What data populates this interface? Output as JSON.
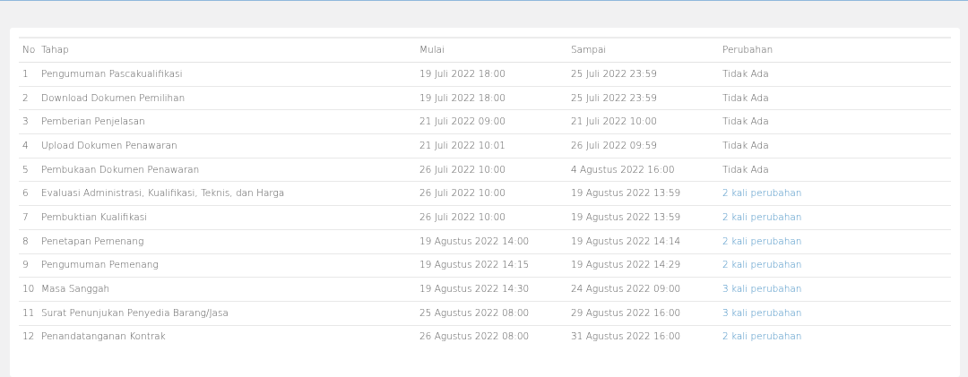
{
  "table": {
    "headers": [
      "No",
      "Tahap",
      "Mulai",
      "Sampai",
      "Perubahan"
    ],
    "rows": [
      [
        "1",
        "Pengumuman Pascakualifikasi",
        "19 Juli 2022 18:00",
        "25 Juli 2022 23:59",
        "Tidak Ada"
      ],
      [
        "2",
        "Download Dokumen Pemilihan",
        "19 Juli 2022 18:00",
        "25 Juli 2022 23:59",
        "Tidak Ada"
      ],
      [
        "3",
        "Pemberian Penjelasan",
        "21 Juli 2022 09:00",
        "21 Juli 2022 10:00",
        "Tidak Ada"
      ],
      [
        "4",
        "Upload Dokumen Penawaran",
        "21 Juli 2022 10:01",
        "26 Juli 2022 09:59",
        "Tidak Ada"
      ],
      [
        "5",
        "Pembukaan Dokumen Penawaran",
        "26 Juli 2022 10:00",
        "4 Agustus 2022 16:00",
        "Tidak Ada"
      ],
      [
        "6",
        "Evaluasi Administrasi, Kualifikasi, Teknis, dan Harga",
        "26 Juli 2022 10:00",
        "19 Agustus 2022 13:59",
        "2 kali perubahan"
      ],
      [
        "7",
        "Pembuktian Kualifikasi",
        "26 Juli 2022 10:00",
        "19 Agustus 2022 13:59",
        "2 kali perubahan"
      ],
      [
        "8",
        "Penetapan Pemenang",
        "19 Agustus 2022 14:00",
        "19 Agustus 2022 14:14",
        "2 kali perubahan"
      ],
      [
        "9",
        "Pengumuman Pemenang",
        "19 Agustus 2022 14:15",
        "19 Agustus 2022 14:29",
        "2 kali perubahan"
      ],
      [
        "10",
        "Masa Sanggah",
        "19 Agustus 2022 14:30",
        "24 Agustus 2022 09:00",
        "3 kali perubahan"
      ],
      [
        "11",
        "Surat Penunjukan Penyedia Barang/Jasa",
        "25 Agustus 2022 08:00",
        "29 Agustus 2022 16:00",
        "3 kali perubahan"
      ],
      [
        "12",
        "Penandatanganan Kontrak",
        "26 Agustus 2022 08:00",
        "31 Agustus 2022 16:00",
        "2 kali perubahan"
      ]
    ]
  },
  "colors": {
    "link": "#3f8cc2",
    "text": "#555555",
    "background": "#f1f1f2"
  }
}
